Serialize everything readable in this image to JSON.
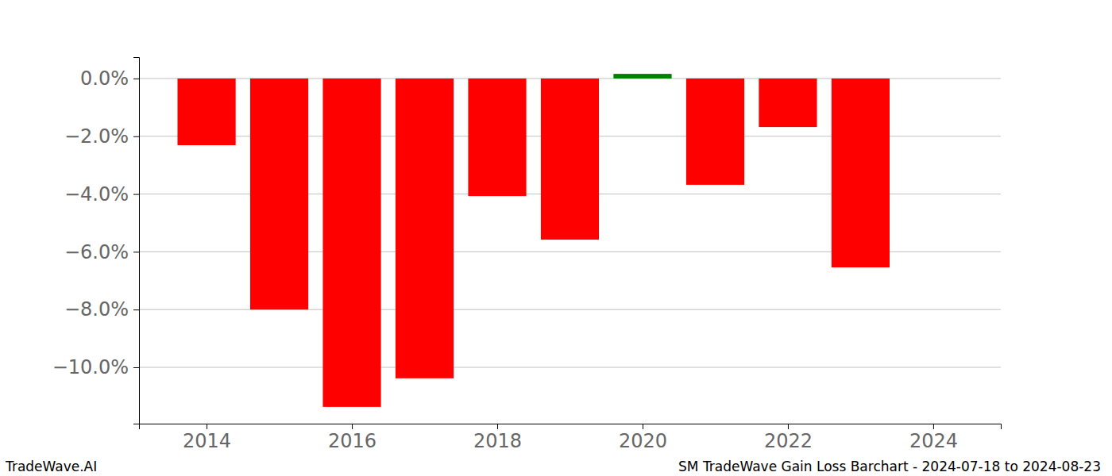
{
  "chart_data": {
    "type": "bar",
    "title": "SM TradeWave Gain Loss Barchart - 2024-07-18 to 2024-08-23",
    "source": "TradeWave.AI",
    "x": [
      2014,
      2015,
      2016,
      2017,
      2018,
      2019,
      2020,
      2021,
      2022,
      2023
    ],
    "values": [
      -2.31,
      -8.0,
      -11.37,
      -10.38,
      -4.07,
      -5.58,
      0.16,
      -3.68,
      -1.68,
      -6.54
    ],
    "colors": [
      "#ff0000",
      "#ff0000",
      "#ff0000",
      "#ff0000",
      "#ff0000",
      "#ff0000",
      "#008000",
      "#ff0000",
      "#ff0000",
      "#ff0000"
    ],
    "xlim": [
      2013.07,
      2024.93
    ],
    "xticks": [
      2014,
      2016,
      2018,
      2020,
      2022,
      2024
    ],
    "ylim": [
      -11.95,
      0.74
    ],
    "yticks": [
      {
        "value": 0,
        "label": "0.0%"
      },
      {
        "value": -2,
        "label": "−2.0%"
      },
      {
        "value": -4,
        "label": "−4.0%"
      },
      {
        "value": -6,
        "label": "−6.0%"
      },
      {
        "value": -8,
        "label": "−8.0%"
      },
      {
        "value": -10,
        "label": "−10.0%"
      }
    ],
    "grid": true
  }
}
